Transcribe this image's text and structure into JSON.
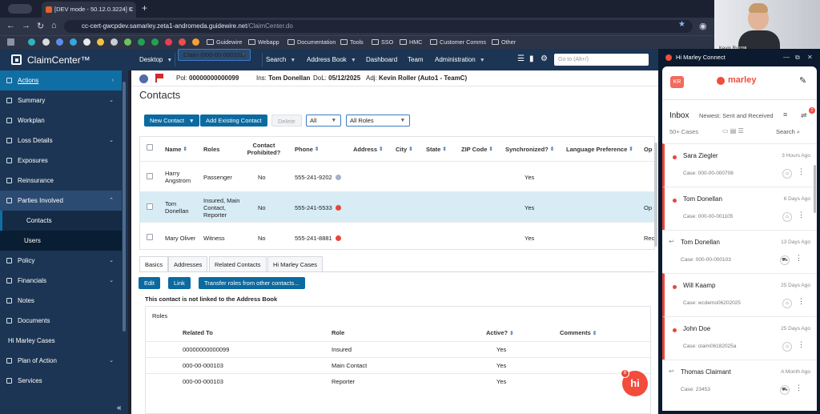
{
  "browser": {
    "tab_title": "[DEV mode - 50.12.0.3224] C",
    "url_host": "cc-cert-gwcpdev.samarley.zeta1-andromeda.guidewire.net",
    "url_path": "/ClaimCenter.do",
    "bookmarks": [
      "Guidewire",
      "Webapp",
      "Documentation",
      "Tools",
      "SSO",
      "HMC",
      "Customer Comms",
      "Other"
    ]
  },
  "video": {
    "name": "Kevin Roller"
  },
  "app": {
    "logo": "ClaimCenter™",
    "nav": [
      "Desktop",
      "Claim (000-00-000103)",
      "Search",
      "Address Book",
      "Dashboard",
      "Team",
      "Administration"
    ],
    "goto_placeholder": "Go to (Alt+/)"
  },
  "sidebar": {
    "items": [
      {
        "label": "Actions",
        "icon": "actions-icon"
      },
      {
        "label": "Summary",
        "icon": "summary-icon"
      },
      {
        "label": "Workplan",
        "icon": "workplan-icon"
      },
      {
        "label": "Loss Details",
        "icon": "loss-details-icon"
      },
      {
        "label": "Exposures",
        "icon": "exposures-icon"
      },
      {
        "label": "Reinsurance",
        "icon": "reinsurance-icon"
      },
      {
        "label": "Parties Involved",
        "icon": "parties-icon"
      },
      {
        "label": "Contacts"
      },
      {
        "label": "Users"
      },
      {
        "label": "Policy",
        "icon": "policy-icon"
      },
      {
        "label": "Financials",
        "icon": "financials-icon"
      },
      {
        "label": "Notes",
        "icon": "notes-icon"
      },
      {
        "label": "Documents",
        "icon": "documents-icon"
      },
      {
        "label": "Hi Marley Cases"
      },
      {
        "label": "Plan of Action",
        "icon": "plan-icon"
      },
      {
        "label": "Services",
        "icon": "services-icon"
      }
    ]
  },
  "infobar": {
    "pol_label": "Pol:",
    "pol": "00000000000099",
    "ins_label": "Ins:",
    "ins": "Tom Donellan",
    "dol_label": "DoL:",
    "dol": "05/12/2025",
    "adj_label": "Adj:",
    "adj": "Kevin Roller (Auto1 - TeamC)"
  },
  "page": {
    "title": "Contacts",
    "new_contact": "New Contact",
    "add_existing": "Add Existing Contact",
    "delete": "Delete",
    "filter1": "All",
    "filter2": "All Roles"
  },
  "contacts": {
    "headers": [
      "Name",
      "Roles",
      "Contact Prohibited?",
      "Phone",
      "Address",
      "City",
      "State",
      "ZIP Code",
      "Synchronized?",
      "Language Preference",
      "Op"
    ],
    "rows": [
      {
        "name": "Harry Angstrom",
        "roles": "Passenger",
        "prohibited": "No",
        "phone": "555-241-9202",
        "synced": "Yes",
        "op": ""
      },
      {
        "name": "Tom Donellan",
        "roles": "Insured, Main Contact, Reporter",
        "prohibited": "No",
        "phone": "555-241-5533",
        "synced": "Yes",
        "op": "Op"
      },
      {
        "name": "Mary Oliver",
        "roles": "Witness",
        "prohibited": "No",
        "phone": "555-241-8881",
        "synced": "Yes",
        "op": "Rec"
      }
    ]
  },
  "detail": {
    "tabs": [
      "Basics",
      "Addresses",
      "Related Contacts",
      "Hi Marley Cases"
    ],
    "edit": "Edit",
    "link": "Link",
    "transfer": "Transfer roles from other contacts...",
    "note": "This contact is not linked to the Address Book",
    "roles_title": "Roles",
    "roles_headers": [
      "Related To",
      "Role",
      "Active?",
      "Comments"
    ],
    "roles_rows": [
      {
        "related": "00000000000099",
        "role": "Insured",
        "active": "Yes"
      },
      {
        "related": "000-00-000103",
        "role": "Main Contact",
        "active": "Yes"
      },
      {
        "related": "000-00-000103",
        "role": "Reporter",
        "active": "Yes"
      }
    ],
    "hi_badge": "8",
    "hi_label": "hi"
  },
  "marley": {
    "header": "Hi Marley Connect",
    "avatar": "KR",
    "logo": "marley",
    "inbox": "Inbox",
    "sort": "Newest: Sent and Received",
    "filter_badge": "2",
    "count": "50+ Cases",
    "search": "Search",
    "items": [
      {
        "name": "Sara Ziegler",
        "time": "3 Hours Ago",
        "case": "Case: 000-00-000706",
        "active": true,
        "replied": false
      },
      {
        "name": "Tom Donellan",
        "time": "6 Days Ago",
        "case": "Case: 000-00-001105",
        "active": true,
        "replied": false
      },
      {
        "name": "Tom Donellan",
        "time": "13 Days Ago",
        "case": "Case: 000-00-000103",
        "active": false,
        "replied": true
      },
      {
        "name": "Will Kaamp",
        "time": "25 Days Ago",
        "case": "Case: wcdemo06202025",
        "active": true,
        "replied": false
      },
      {
        "name": "John Doe",
        "time": "25 Days Ago",
        "case": "Case: claim06182025a",
        "active": true,
        "replied": false
      },
      {
        "name": "Thomas Claimant",
        "time": "A Month Ago",
        "case": "Case: 23453",
        "active": false,
        "replied": true
      }
    ]
  }
}
